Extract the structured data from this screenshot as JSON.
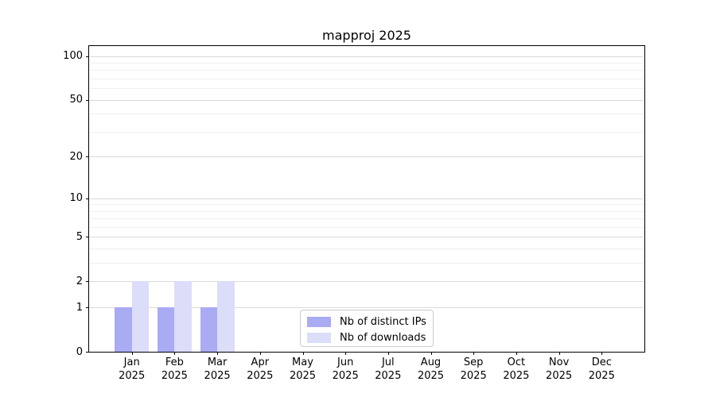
{
  "chart_data": {
    "type": "bar",
    "title": "mapproj 2025",
    "categories": [
      "Jan 2025",
      "Feb 2025",
      "Mar 2025",
      "Apr 2025",
      "May 2025",
      "Jun 2025",
      "Jul 2025",
      "Aug 2025",
      "Sep 2025",
      "Oct 2025",
      "Nov 2025",
      "Dec 2025"
    ],
    "series": [
      {
        "name": "Nb of distinct IPs",
        "color": "#a9abf3",
        "values": [
          1,
          1,
          1,
          0,
          0,
          0,
          0,
          0,
          0,
          0,
          0,
          0
        ]
      },
      {
        "name": "Nb of downloads",
        "color": "#dcddf9",
        "values": [
          2,
          2,
          2,
          0,
          0,
          0,
          0,
          0,
          0,
          0,
          0,
          0
        ]
      }
    ],
    "y_ticks": [
      0,
      1,
      2,
      5,
      10,
      20,
      50,
      100
    ],
    "y_minor_ticks": [
      3,
      4,
      6,
      7,
      8,
      9,
      30,
      40,
      60,
      70,
      80,
      90
    ],
    "y_scale": "log10(1+v)",
    "ylim": [
      0,
      117
    ],
    "grid": true,
    "legend_position": "bottom-center-inside"
  },
  "colors": {
    "major_grid": "#d9d9d9",
    "minor_grid": "#f0f0f0",
    "axis": "#000000",
    "legend_border": "#cccccc",
    "background": "#ffffff"
  }
}
